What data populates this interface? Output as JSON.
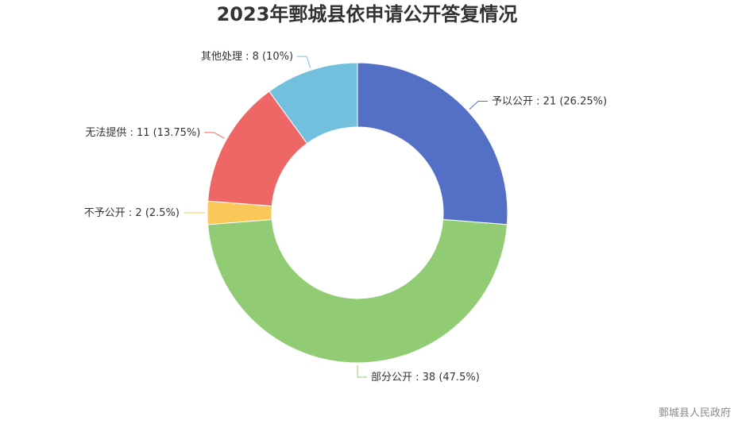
{
  "chart_data": {
    "type": "pie",
    "title": "2023年鄄城县依申请公开答复情况",
    "slices": [
      {
        "name": "予以公开",
        "value": 21,
        "percent": "26.25%",
        "color": "#5470c6"
      },
      {
        "name": "部分公开",
        "value": 38,
        "percent": "47.5%",
        "color": "#91cc75"
      },
      {
        "name": "不予公开",
        "value": 2,
        "percent": "2.5%",
        "color": "#fac858"
      },
      {
        "name": "无法提供",
        "value": 11,
        "percent": "13.75%",
        "color": "#ee6666"
      },
      {
        "name": "其他处理",
        "value": 8,
        "percent": "10%",
        "color": "#73c0de"
      }
    ]
  },
  "watermark": "鄄城县人民政府"
}
